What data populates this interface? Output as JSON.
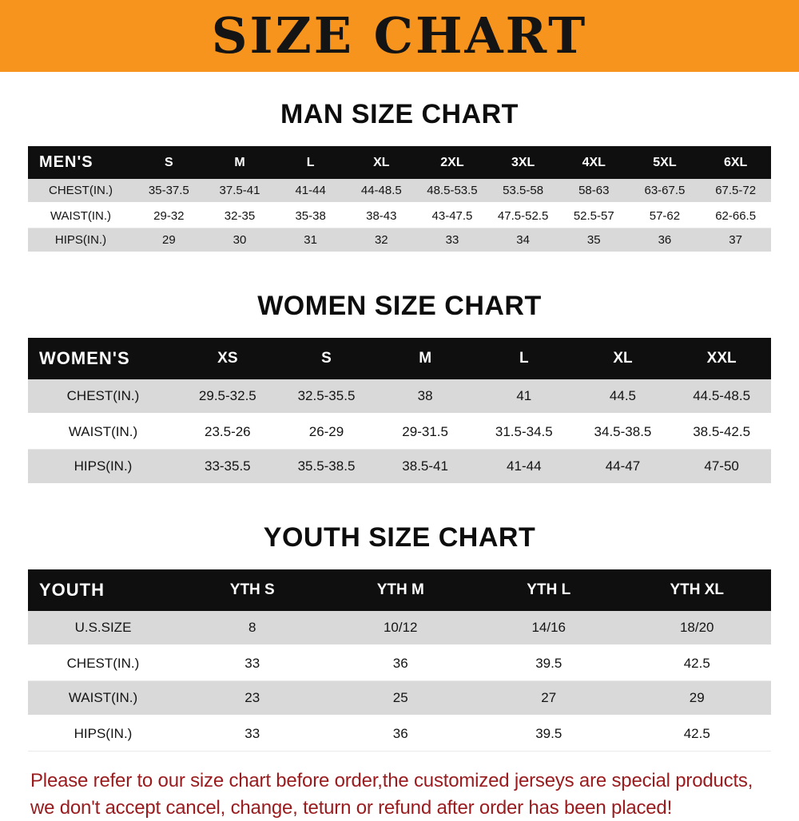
{
  "banner": {
    "title": "SIZE CHART",
    "bg_color": "#F7941E",
    "text_color": "#141414"
  },
  "chart_data": [
    {
      "type": "table",
      "title": "MAN SIZE CHART",
      "corner_label": "MEN'S",
      "columns": [
        "S",
        "M",
        "L",
        "XL",
        "2XL",
        "3XL",
        "4XL",
        "5XL",
        "6XL"
      ],
      "rows": [
        {
          "label": "CHEST(IN.)",
          "values": [
            "35-37.5",
            "37.5-41",
            "41-44",
            "44-48.5",
            "48.5-53.5",
            "53.5-58",
            "58-63",
            "63-67.5",
            "67.5-72"
          ]
        },
        {
          "label": "WAIST(IN.)",
          "values": [
            "29-32",
            "32-35",
            "35-38",
            "38-43",
            "43-47.5",
            "47.5-52.5",
            "52.5-57",
            "57-62",
            "62-66.5"
          ]
        },
        {
          "label": "HIPS(IN.)",
          "values": [
            "29",
            "30",
            "31",
            "32",
            "33",
            "34",
            "35",
            "36",
            "37"
          ]
        }
      ]
    },
    {
      "type": "table",
      "title": "WOMEN SIZE CHART",
      "corner_label": "WOMEN'S",
      "columns": [
        "XS",
        "S",
        "M",
        "L",
        "XL",
        "XXL"
      ],
      "rows": [
        {
          "label": "CHEST(IN.)",
          "values": [
            "29.5-32.5",
            "32.5-35.5",
            "38",
            "41",
            "44.5",
            "44.5-48.5"
          ]
        },
        {
          "label": "WAIST(IN.)",
          "values": [
            "23.5-26",
            "26-29",
            "29-31.5",
            "31.5-34.5",
            "34.5-38.5",
            "38.5-42.5"
          ]
        },
        {
          "label": "HIPS(IN.)",
          "values": [
            "33-35.5",
            "35.5-38.5",
            "38.5-41",
            "41-44",
            "44-47",
            "47-50"
          ]
        }
      ]
    },
    {
      "type": "table",
      "title": "YOUTH SIZE CHART",
      "corner_label": "YOUTH",
      "columns": [
        "YTH S",
        "YTH M",
        "YTH L",
        "YTH XL"
      ],
      "rows": [
        {
          "label": "U.S.SIZE",
          "values": [
            "8",
            "10/12",
            "14/16",
            "18/20"
          ]
        },
        {
          "label": "CHEST(IN.)",
          "values": [
            "33",
            "36",
            "39.5",
            "42.5"
          ]
        },
        {
          "label": "WAIST(IN.)",
          "values": [
            "23",
            "25",
            "27",
            "29"
          ]
        },
        {
          "label": "HIPS(IN.)",
          "values": [
            "33",
            "36",
            "39.5",
            "42.5"
          ]
        }
      ]
    }
  ],
  "footer": {
    "line1": "Please refer to our size chart before order,the customized jerseys are special products,",
    "line2": "we don't accept cancel, change, teturn or refund after order has been placed!",
    "text_color": "#9A1B1E"
  },
  "colors": {
    "header_row_bg": "#0f0f0f",
    "header_row_text": "#ffffff",
    "stripe_row_bg": "#d9d9d9"
  }
}
